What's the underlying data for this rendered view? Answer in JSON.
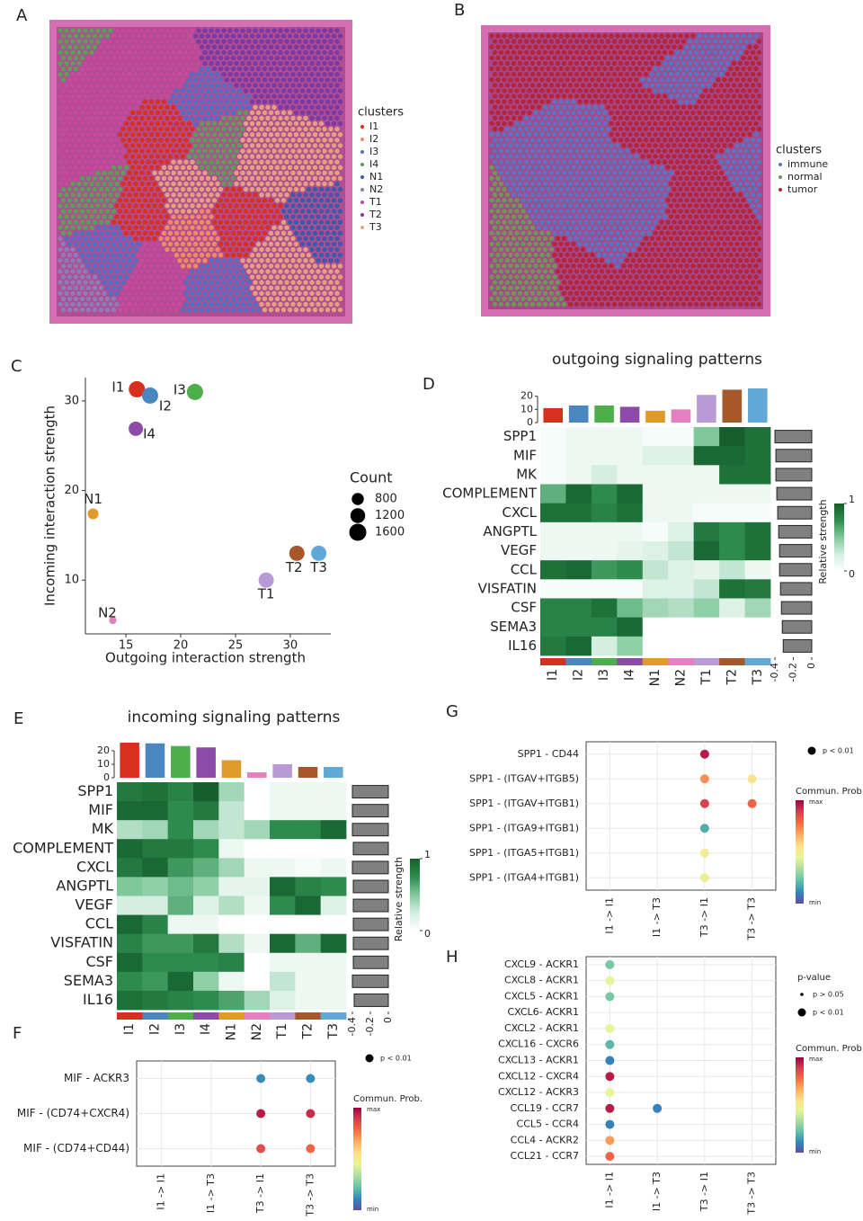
{
  "chart_data": [
    {
      "type": "spatial",
      "label": "A",
      "legend_title": "clusters",
      "series": [
        {
          "name": "I1",
          "color": "#d7301f"
        },
        {
          "name": "I2",
          "color": "#ef8a62"
        },
        {
          "name": "I3",
          "color": "#4e6fc4"
        },
        {
          "name": "I4",
          "color": "#5d9c59"
        },
        {
          "name": "N1",
          "color": "#3d5aa8"
        },
        {
          "name": "N2",
          "color": "#8a7db8"
        },
        {
          "name": "T1",
          "color": "#c8489c"
        },
        {
          "name": "T2",
          "color": "#7a3aa3"
        },
        {
          "name": "T3",
          "color": "#e2a27e"
        }
      ]
    },
    {
      "type": "spatial",
      "label": "B",
      "legend_title": "clusters",
      "series": [
        {
          "name": "immune",
          "color": "#5b74c0"
        },
        {
          "name": "normal",
          "color": "#6e9656"
        },
        {
          "name": "tumor",
          "color": "#b3263a"
        }
      ]
    },
    {
      "type": "scatter",
      "label": "C",
      "xlabel": "Outgoing interaction strength",
      "ylabel": "Incoming interaction strength",
      "xlim": [
        11.3,
        33.7
      ],
      "ylim": [
        4,
        32.6
      ],
      "xticks": [
        15,
        20,
        25,
        30
      ],
      "yticks": [
        10,
        20,
        30
      ],
      "grid": false,
      "series": [
        {
          "name": "I1",
          "color": "#d7301f",
          "x": [
            16
          ],
          "values": [
            31.3
          ],
          "sizes": [
            1450
          ]
        },
        {
          "name": "I2",
          "color": "#4a86c0",
          "x": [
            17.2
          ],
          "values": [
            30.6
          ],
          "sizes": [
            1450
          ]
        },
        {
          "name": "I3",
          "color": "#4daf4a",
          "x": [
            21.3
          ],
          "values": [
            31
          ],
          "sizes": [
            1450
          ]
        },
        {
          "name": "I4",
          "color": "#8c4ba8",
          "x": [
            15.9
          ],
          "values": [
            26.9
          ],
          "sizes": [
            1130
          ]
        },
        {
          "name": "N1",
          "color": "#e09a2a",
          "x": [
            12
          ],
          "values": [
            17.4
          ],
          "sizes": [
            640
          ]
        },
        {
          "name": "N2",
          "color": "#e57fbf",
          "x": [
            13.8
          ],
          "values": [
            5.5
          ],
          "sizes": [
            300
          ]
        },
        {
          "name": "T1",
          "color": "#b89ad6",
          "x": [
            27.8
          ],
          "values": [
            10
          ],
          "sizes": [
            1280
          ]
        },
        {
          "name": "T2",
          "color": "#a8572a",
          "x": [
            30.6
          ],
          "values": [
            13
          ],
          "sizes": [
            1280
          ]
        },
        {
          "name": "T3",
          "color": "#5fa8d8",
          "x": [
            32.6
          ],
          "values": [
            13
          ],
          "sizes": [
            1280
          ]
        }
      ],
      "size_legend": {
        "title": "Count",
        "values": [
          800,
          1200,
          1600
        ]
      }
    },
    {
      "type": "heatmap",
      "label": "D",
      "title": "outgoing signaling patterns",
      "rows": [
        "SPP1",
        "MIF",
        "MK",
        "COMPLEMENT",
        "CXCL",
        "ANGPTL",
        "VEGF",
        "CCL",
        "VISFATIN",
        "CSF",
        "SEMA3",
        "IL16"
      ],
      "columns": [
        "I1",
        "I2",
        "I3",
        "I4",
        "N1",
        "N2",
        "T1",
        "T2",
        "T3"
      ],
      "column_colors": [
        "#d7301f",
        "#4a86c0",
        "#4daf4a",
        "#8c4ba8",
        "#e09a2a",
        "#e57fbf",
        "#b89ad6",
        "#a8572a",
        "#5fa8d8"
      ],
      "values": [
        [
          0.05,
          0.1,
          0.1,
          0.1,
          0.05,
          0.05,
          0.5,
          1,
          0.9
        ],
        [
          0.05,
          0.1,
          0.1,
          0.1,
          0.2,
          0.2,
          0.95,
          0.95,
          0.9
        ],
        [
          0.05,
          0.1,
          0.25,
          0.1,
          0.1,
          0.1,
          0.1,
          0.9,
          0.9
        ],
        [
          0.6,
          0.95,
          0.75,
          0.95,
          0.1,
          0.1,
          0.1,
          0.1,
          0.1
        ],
        [
          0.9,
          0.9,
          0.8,
          0.9,
          0.1,
          0.1,
          0.05,
          0.05,
          0.05
        ],
        [
          0.1,
          0.1,
          0.1,
          0.1,
          0.05,
          0.2,
          0.85,
          0.75,
          0.9
        ],
        [
          0.1,
          0.1,
          0.1,
          0.15,
          0.2,
          0.3,
          0.95,
          0.75,
          0.9
        ],
        [
          0.9,
          0.95,
          0.7,
          0.75,
          0.3,
          0.2,
          0.15,
          0.3,
          0.1
        ],
        [
          0.05,
          0.05,
          0.05,
          0.05,
          0.2,
          0.2,
          0.3,
          0.9,
          0.85
        ],
        [
          0.8,
          0.8,
          0.9,
          0.55,
          0.4,
          0.35,
          0.45,
          0.2,
          0.4
        ],
        [
          0.8,
          0.8,
          0.8,
          0.95,
          0,
          0,
          0,
          0,
          0
        ],
        [
          0.85,
          0.95,
          0.25,
          0.45,
          0,
          0,
          0,
          0,
          0
        ]
      ],
      "top_values": [
        11,
        13,
        13,
        12,
        9,
        10,
        21,
        25,
        26
      ],
      "top_ylim": [
        0,
        28
      ],
      "top_yticks": [
        0,
        10,
        20
      ],
      "side_values": [
        -0.4,
        -0.39,
        -0.39,
        -0.38,
        -0.37,
        -0.36,
        -0.35,
        -0.35,
        -0.34,
        -0.33,
        -0.32,
        -0.31
      ],
      "side_xlim": [
        -0.42,
        0
      ],
      "side_xticks": [
        -0.4,
        -0.2,
        0
      ],
      "colorbar": {
        "label": "Relative strength",
        "ticks": [
          0,
          1
        ]
      },
      "colormap": [
        "#ffffff",
        "#d4eee0",
        "#7fc89a",
        "#2e8b4e",
        "#155f2c"
      ]
    },
    {
      "type": "heatmap",
      "label": "E",
      "title": "incoming signaling patterns",
      "rows": [
        "SPP1",
        "MIF",
        "MK",
        "COMPLEMENT",
        "CXCL",
        "ANGPTL",
        "VEGF",
        "CCL",
        "VISFATIN",
        "CSF",
        "SEMA3",
        "IL16"
      ],
      "columns": [
        "I1",
        "I2",
        "I3",
        "I4",
        "N1",
        "N2",
        "T1",
        "T2",
        "T3"
      ],
      "column_colors": [
        "#d7301f",
        "#4a86c0",
        "#4daf4a",
        "#8c4ba8",
        "#e09a2a",
        "#e57fbf",
        "#b89ad6",
        "#a8572a",
        "#5fa8d8"
      ],
      "values": [
        [
          0.85,
          0.9,
          0.8,
          1,
          0.4,
          0,
          0.1,
          0.1,
          0.1
        ],
        [
          0.95,
          0.95,
          0.75,
          0.85,
          0.3,
          0,
          0.1,
          0.1,
          0.1
        ],
        [
          0.35,
          0.4,
          0.75,
          0.4,
          0.3,
          0.4,
          0.75,
          0.75,
          0.95
        ],
        [
          0.95,
          0.85,
          0.85,
          0.75,
          0.1,
          0,
          0,
          0,
          0
        ],
        [
          0.85,
          0.95,
          0.7,
          0.6,
          0.4,
          0.1,
          0.1,
          0.05,
          0.1
        ],
        [
          0.5,
          0.45,
          0.55,
          0.45,
          0.15,
          0.15,
          0.95,
          0.8,
          0.75
        ],
        [
          0.25,
          0.25,
          0.6,
          0.2,
          0.35,
          0.1,
          0.75,
          0.95,
          0.2
        ],
        [
          0.95,
          0.8,
          0.1,
          0.1,
          0,
          0,
          0,
          0,
          0
        ],
        [
          0.8,
          0.7,
          0.7,
          0.85,
          0.35,
          0.1,
          0.95,
          0.6,
          0.95
        ],
        [
          0.95,
          0.75,
          0.75,
          0.75,
          0.8,
          0,
          0.1,
          0.1,
          0.1
        ],
        [
          0.75,
          0.7,
          0.95,
          0.45,
          0.1,
          0,
          0.3,
          0.1,
          0.1
        ],
        [
          0.9,
          0.85,
          0.8,
          0.75,
          0.65,
          0.4,
          0.2,
          0.1,
          0.1
        ]
      ],
      "top_values": [
        26,
        25.5,
        23.5,
        22.5,
        13,
        4,
        10,
        8,
        8
      ],
      "top_ylim": [
        0,
        28
      ],
      "top_yticks": [
        0,
        10,
        20
      ],
      "side_values": [
        -0.4,
        -0.4,
        -0.4,
        -0.39,
        -0.4,
        -0.39,
        -0.39,
        -0.39,
        -0.39,
        -0.39,
        -0.4,
        -0.38
      ],
      "side_xlim": [
        -0.42,
        0
      ],
      "side_xticks": [
        -0.4,
        -0.2,
        0
      ],
      "colorbar": {
        "label": "Relative strength",
        "ticks": [
          0,
          1
        ]
      },
      "colormap": [
        "#ffffff",
        "#d4eee0",
        "#7fc89a",
        "#2e8b4e",
        "#155f2c"
      ]
    },
    {
      "type": "dotplot",
      "label": "F",
      "rows": [
        "MIF - ACKR3",
        "MIF - (CD74+CXCR4)",
        "MIF - (CD74+CD44)"
      ],
      "columns": [
        "I1 -> I1",
        "I1 -> T3",
        "T3 -> I1",
        "T3 -> T3"
      ],
      "values": [
        [
          null,
          null,
          0.12,
          0.12
        ],
        [
          null,
          null,
          0.95,
          0.92
        ],
        [
          null,
          null,
          0.85,
          0.8
        ]
      ],
      "size_legend": {
        "entries": [
          "p < 0.01"
        ]
      },
      "colorbar": {
        "label": "Commun. Prob.",
        "high_label": "max",
        "low_label": "min"
      },
      "colormap": [
        "#5e4fa2",
        "#3288bd",
        "#66c2a5",
        "#abdda4",
        "#e6f598",
        "#fee08b",
        "#fdae61",
        "#f46d43",
        "#d53e4f",
        "#9e0142"
      ]
    },
    {
      "type": "dotplot",
      "label": "G",
      "rows": [
        "SPP1 - CD44",
        "SPP1 - (ITGAV+ITGB5)",
        "SPP1 - (ITGAV+ITGB1)",
        "SPP1 - (ITGA9+ITGB1)",
        "SPP1 - (ITGA5+ITGB1)",
        "SPP1 - (ITGA4+ITGB1)"
      ],
      "columns": [
        "I1 -> I1",
        "I1 -> T3",
        "T3 -> I1",
        "T3 -> T3"
      ],
      "values": [
        [
          null,
          null,
          0.95,
          null
        ],
        [
          null,
          null,
          0.72,
          0.55
        ],
        [
          null,
          null,
          0.88,
          0.8
        ],
        [
          null,
          null,
          0.18,
          null
        ],
        [
          null,
          null,
          0.5,
          null
        ],
        [
          null,
          null,
          0.47,
          null
        ]
      ],
      "size_legend": {
        "entries": [
          "p < 0.01"
        ]
      },
      "colorbar": {
        "label": "Commun. Prob.",
        "high_label": "max",
        "low_label": "min"
      },
      "colormap": [
        "#5e4fa2",
        "#3288bd",
        "#66c2a5",
        "#abdda4",
        "#e6f598",
        "#fee08b",
        "#fdae61",
        "#f46d43",
        "#d53e4f",
        "#9e0142"
      ]
    },
    {
      "type": "dotplot",
      "label": "H",
      "rows": [
        "CXCL9 - ACKR1",
        "CXCL8 - ACKR1",
        "CXCL5 - ACKR1",
        "CXCL6- ACKR1",
        "CXCL2 - ACKR1",
        "CXCL16 - CXCR6",
        "CXCL13 - ACKR1",
        "CXCL12 - CXCR4",
        "CXCL12 - ACKR3",
        "CCL19 - CCR7",
        "CCL5 - CCR4",
        "CCL4 - ACKR2",
        "CCL21 - CCR7"
      ],
      "columns": [
        "I1 -> I1",
        "I1 -> T3",
        "T3 -> I1",
        "T3 -> T3"
      ],
      "values": [
        [
          0.25,
          null,
          null,
          null
        ],
        [
          0.45,
          null,
          null,
          null
        ],
        [
          0.25,
          null,
          null,
          null
        ],
        [
          null,
          null,
          null,
          null
        ],
        [
          0.45,
          null,
          null,
          null
        ],
        [
          0.2,
          null,
          null,
          null
        ],
        [
          0.1,
          null,
          null,
          null
        ],
        [
          0.95,
          null,
          null,
          null
        ],
        [
          0.45,
          null,
          null,
          null
        ],
        [
          0.95,
          0.1,
          null,
          null
        ],
        [
          0.1,
          null,
          null,
          null
        ],
        [
          0.7,
          null,
          null,
          null
        ],
        [
          0.8,
          null,
          null,
          null
        ]
      ],
      "highlight_rows": [
        9
      ],
      "highlight_color": "#d0312d",
      "size_legend": {
        "title": "p-value",
        "entries": [
          "p > 0.05",
          "p < 0.01"
        ]
      },
      "colorbar": {
        "label": "Commun. Prob.",
        "high_label": "max",
        "low_label": "min"
      },
      "colormap": [
        "#5e4fa2",
        "#3288bd",
        "#66c2a5",
        "#abdda4",
        "#e6f598",
        "#fee08b",
        "#fdae61",
        "#f46d43",
        "#d53e4f",
        "#9e0142"
      ]
    }
  ]
}
